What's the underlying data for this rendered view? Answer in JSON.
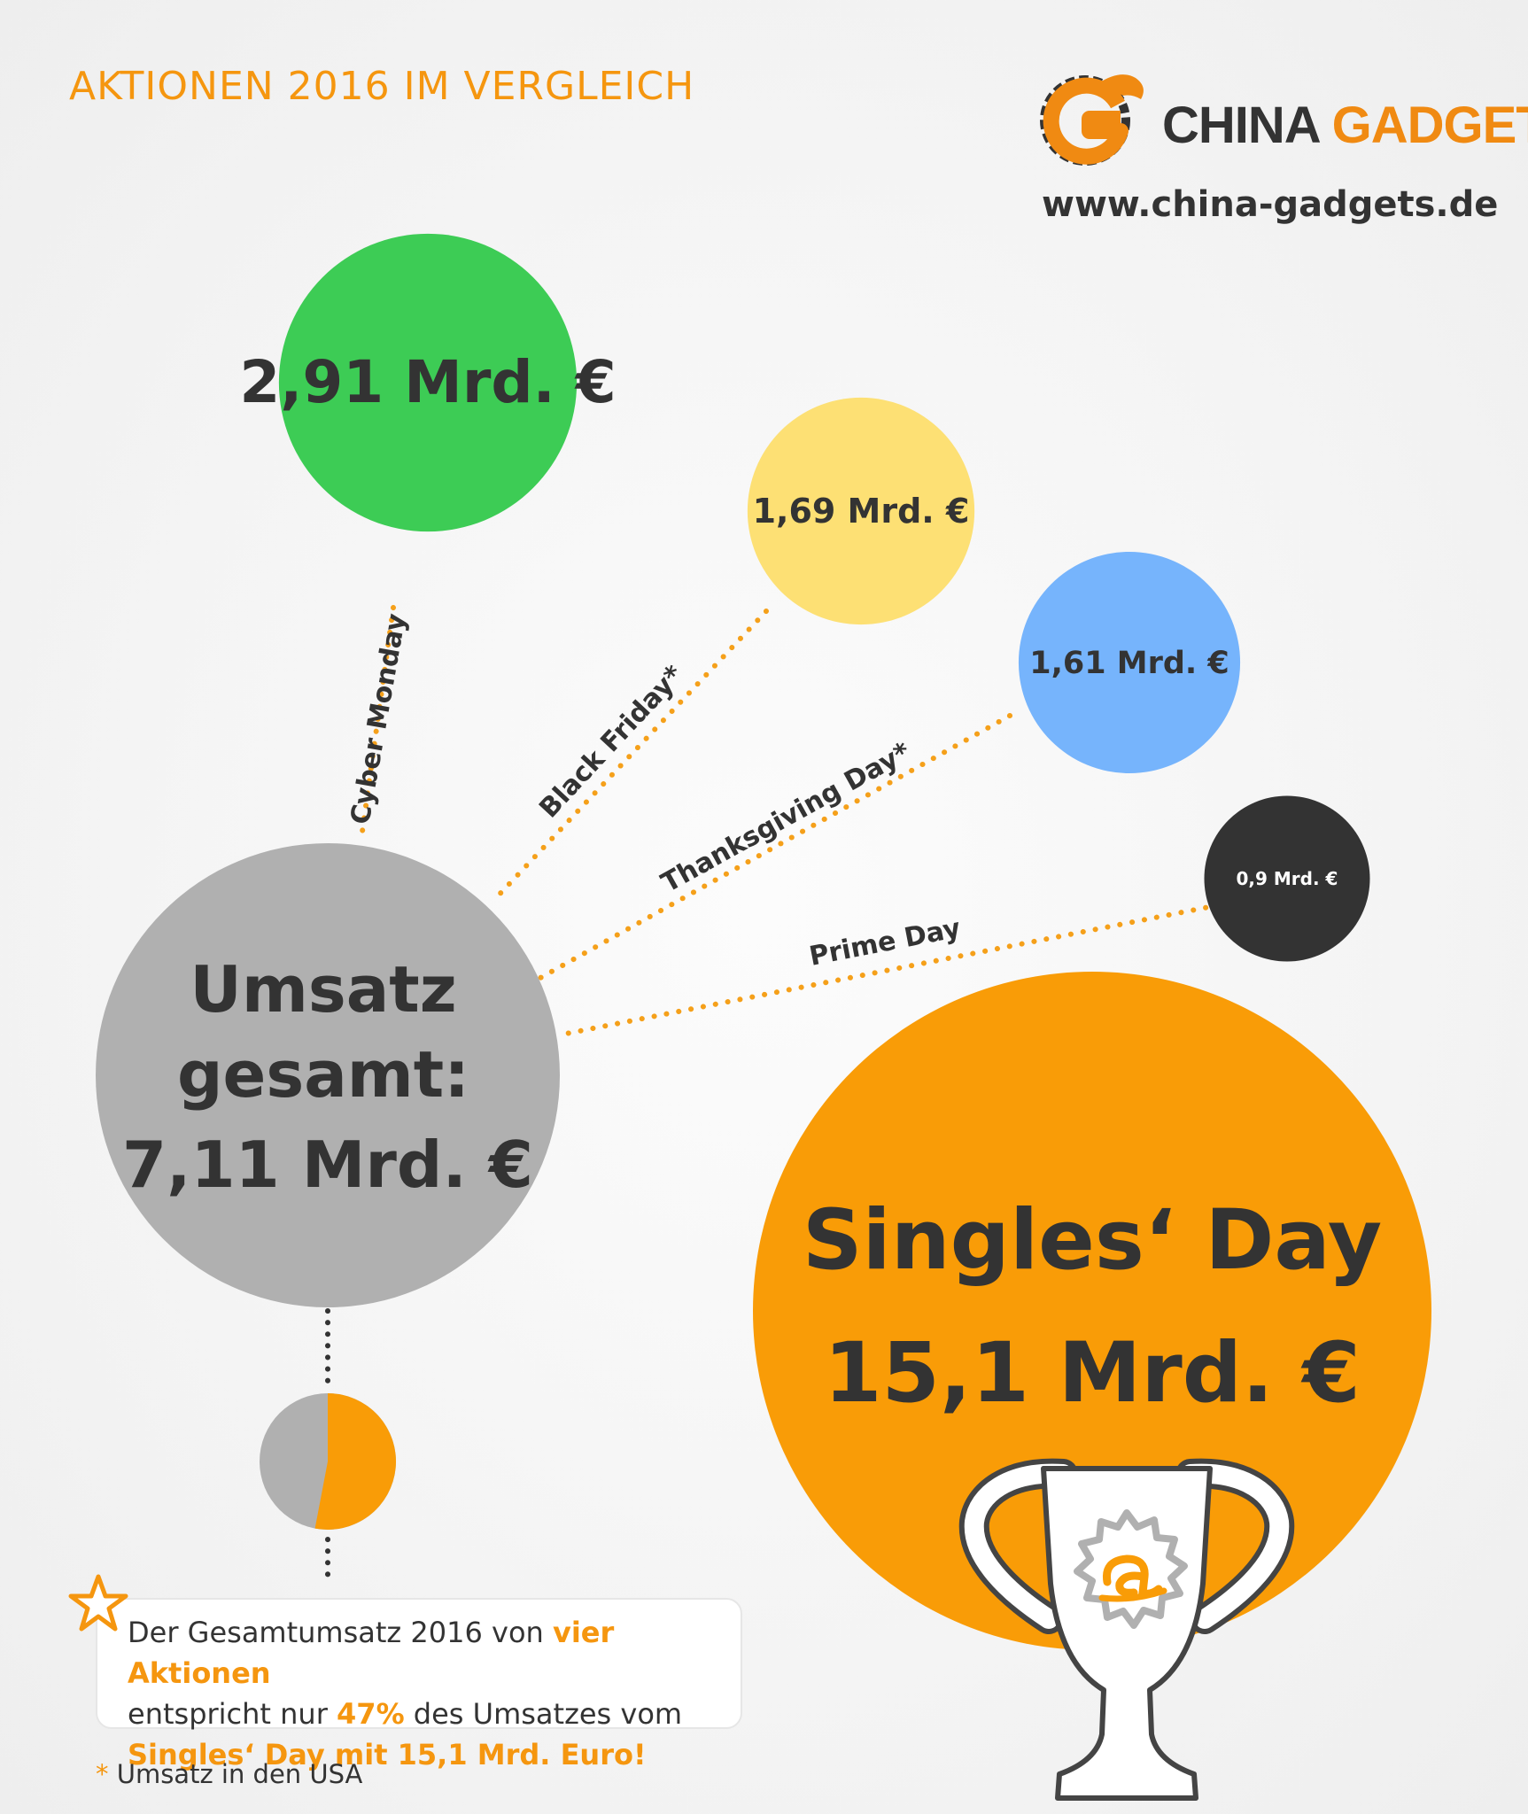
{
  "header": {
    "title": "AKTIONEN 2016 IM VERGLEICH",
    "brand_part1": "CHINA",
    "brand_part2": "GADGETS",
    "brand_url": "www.china-gadgets.de"
  },
  "chart_data": {
    "type": "bubble",
    "unit": "Mrd. €",
    "series": [
      {
        "name": "Cyber Monday",
        "value": 2.91,
        "value_label": "2,91 Mrd. €",
        "color": "#3dcc55"
      },
      {
        "name": "Black Friday*",
        "value": 1.69,
        "value_label": "1,69 Mrd. €",
        "color": "#fde074"
      },
      {
        "name": "Thanksgiving Day*",
        "value": 1.61,
        "value_label": "1,61 Mrd. €",
        "color": "#76b4fc"
      },
      {
        "name": "Prime Day",
        "value": 0.9,
        "value_label": "0,9 Mrd. €",
        "color": "#333333"
      }
    ],
    "total": {
      "label_line1": "Umsatz",
      "label_line2": "gesamt:",
      "value_label": "7,11 Mrd. €",
      "value": 7.11,
      "color": "#b0b0b0"
    },
    "singles_day": {
      "name": "Singles‘ Day",
      "value": 15.1,
      "value_label": "15,1 Mrd. €",
      "color": "#f99c07"
    },
    "share_pie": {
      "orange_fraction": 0.53,
      "gray_fraction": 0.47,
      "colors": [
        "#f99c07",
        "#b0b0b0"
      ]
    }
  },
  "note": {
    "part1": "Der Gesamtumsatz 2016 von ",
    "part2": "vier Aktionen",
    "part3": "entspricht nur ",
    "part4": "47%",
    "part5": " des Umsatzes vom",
    "part6": "Singles‘ Day mit 15,1 Mrd. Euro!"
  },
  "footnote": {
    "star": "*",
    "text": " Umsatz in den USA"
  }
}
